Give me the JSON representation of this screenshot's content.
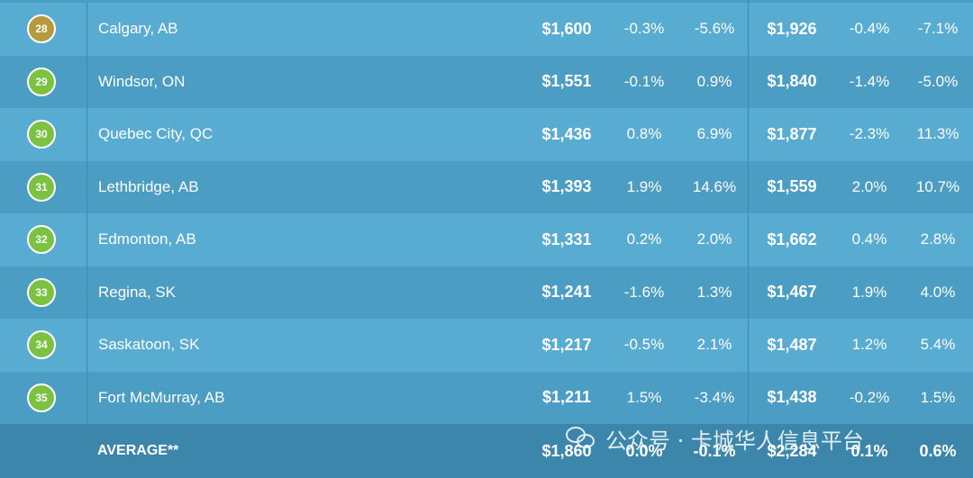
{
  "rows": [
    {
      "rank": "28",
      "city": "Calgary, AB",
      "p1": "$1,600",
      "m1": "-0.3%",
      "y1": "-5.6%",
      "p2": "$1,926",
      "m2": "-0.4%",
      "y2": "-7.1%"
    },
    {
      "rank": "29",
      "city": "Windsor, ON",
      "p1": "$1,551",
      "m1": "-0.1%",
      "y1": "0.9%",
      "p2": "$1,840",
      "m2": "-1.4%",
      "y2": "-5.0%"
    },
    {
      "rank": "30",
      "city": "Quebec City, QC",
      "p1": "$1,436",
      "m1": "0.8%",
      "y1": "6.9%",
      "p2": "$1,877",
      "m2": "-2.3%",
      "y2": "11.3%"
    },
    {
      "rank": "31",
      "city": "Lethbridge, AB",
      "p1": "$1,393",
      "m1": "1.9%",
      "y1": "14.6%",
      "p2": "$1,559",
      "m2": "2.0%",
      "y2": "10.7%"
    },
    {
      "rank": "32",
      "city": "Edmonton, AB",
      "p1": "$1,331",
      "m1": "0.2%",
      "y1": "2.0%",
      "p2": "$1,662",
      "m2": "0.4%",
      "y2": "2.8%"
    },
    {
      "rank": "33",
      "city": "Regina, SK",
      "p1": "$1,241",
      "m1": "-1.6%",
      "y1": "1.3%",
      "p2": "$1,467",
      "m2": "1.9%",
      "y2": "4.0%"
    },
    {
      "rank": "34",
      "city": "Saskatoon, SK",
      "p1": "$1,217",
      "m1": "-0.5%",
      "y1": "2.1%",
      "p2": "$1,487",
      "m2": "1.2%",
      "y2": "5.4%"
    },
    {
      "rank": "35",
      "city": "Fort McMurray, AB",
      "p1": "$1,211",
      "m1": "1.5%",
      "y1": "-3.4%",
      "p2": "$1,438",
      "m2": "-0.2%",
      "y2": "1.5%"
    }
  ],
  "footer": {
    "label": "AVERAGE**",
    "p1": "$1,860",
    "m1": "0.0%",
    "y1": "-0.1%",
    "p2": "$2,284",
    "m2": "0.1%",
    "y2": "0.6%"
  },
  "watermark": {
    "text": "公众号 · 卡城华人信息平台",
    "icon": "wechat-icon"
  },
  "colors": {
    "row_light": "#58acd2",
    "row_dark": "#4c9dc3",
    "footer": "#3d86ab",
    "badge_green": "#7cc242",
    "badge_gold": "#b59a3e"
  }
}
